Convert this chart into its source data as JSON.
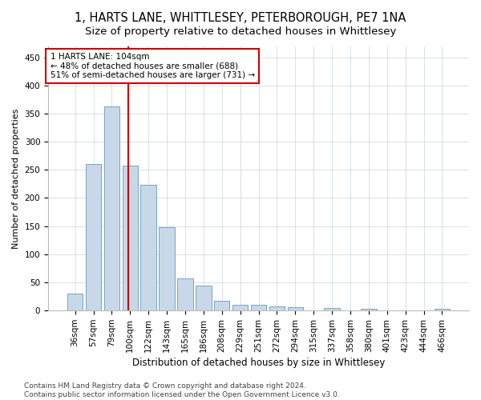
{
  "title1": "1, HARTS LANE, WHITTLESEY, PETERBOROUGH, PE7 1NA",
  "title2": "Size of property relative to detached houses in Whittlesey",
  "xlabel": "Distribution of detached houses by size in Whittlesey",
  "ylabel": "Number of detached properties",
  "categories": [
    "36sqm",
    "57sqm",
    "79sqm",
    "100sqm",
    "122sqm",
    "143sqm",
    "165sqm",
    "186sqm",
    "208sqm",
    "229sqm",
    "251sqm",
    "272sqm",
    "294sqm",
    "315sqm",
    "337sqm",
    "358sqm",
    "380sqm",
    "401sqm",
    "423sqm",
    "444sqm",
    "466sqm"
  ],
  "values": [
    30,
    260,
    362,
    257,
    224,
    148,
    57,
    45,
    17,
    10,
    10,
    8,
    6,
    0,
    5,
    0,
    3,
    0,
    0,
    0,
    3
  ],
  "bar_color": "#c8d8e8",
  "bar_edge_color": "#6699bb",
  "vline_x_index": 3,
  "vline_color": "#cc0000",
  "annotation_line1": "1 HARTS LANE: 104sqm",
  "annotation_line2": "← 48% of detached houses are smaller (688)",
  "annotation_line3": "51% of semi-detached houses are larger (731) →",
  "annotation_box_color": "#ffffff",
  "annotation_box_edge": "#cc0000",
  "ylim": [
    0,
    470
  ],
  "yticks": [
    0,
    50,
    100,
    150,
    200,
    250,
    300,
    350,
    400,
    450
  ],
  "footer1": "Contains HM Land Registry data © Crown copyright and database right 2024.",
  "footer2": "Contains public sector information licensed under the Open Government Licence v3.0.",
  "bg_color": "#ffffff",
  "grid_color": "#c8d4e0",
  "title1_fontsize": 10.5,
  "title2_fontsize": 9.5,
  "xlabel_fontsize": 8.5,
  "ylabel_fontsize": 8,
  "tick_fontsize": 7.5,
  "annot_fontsize": 7.5,
  "footer_fontsize": 6.5
}
